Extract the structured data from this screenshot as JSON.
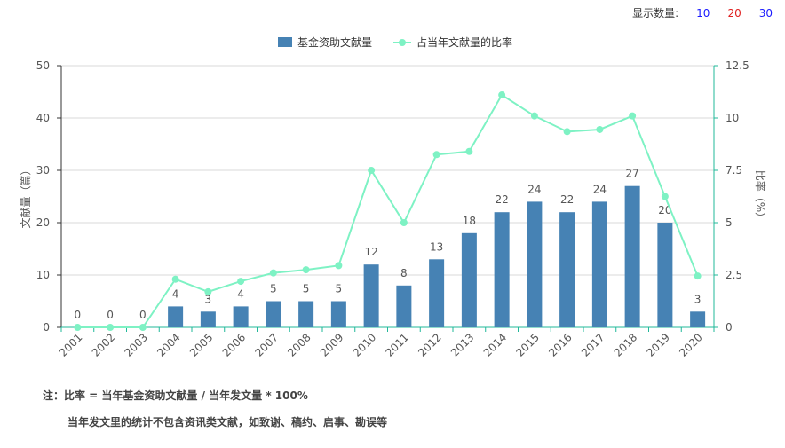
{
  "count_selector": {
    "label": "显示数量:",
    "options": [
      {
        "value": "10",
        "color": "#1a1aff"
      },
      {
        "value": "20",
        "color": "#e02020"
      },
      {
        "value": "30",
        "color": "#1a1aff"
      }
    ]
  },
  "colors": {
    "bar": "#4682b4",
    "line": "#7ef2c4",
    "axis_right": "#21b89a",
    "grid": "#d9d9d9",
    "text": "#555555"
  },
  "chart_data": {
    "type": "bar",
    "categories": [
      "2001",
      "2002",
      "2003",
      "2004",
      "2005",
      "2006",
      "2007",
      "2008",
      "2009",
      "2010",
      "2011",
      "2012",
      "2013",
      "2014",
      "2015",
      "2016",
      "2017",
      "2018",
      "2019",
      "2020"
    ],
    "series": [
      {
        "name": "基金资助文献量",
        "type": "bar",
        "axis": "left",
        "values": [
          0,
          0,
          0,
          4,
          3,
          4,
          5,
          5,
          5,
          12,
          8,
          13,
          18,
          22,
          24,
          22,
          24,
          27,
          20,
          3
        ]
      },
      {
        "name": "占当年文献量的比率",
        "type": "line",
        "axis": "right",
        "values": [
          0,
          0,
          0,
          2.3,
          1.7,
          2.2,
          2.6,
          2.75,
          2.95,
          7.5,
          5.0,
          8.25,
          8.4,
          11.1,
          10.1,
          9.35,
          9.45,
          10.1,
          6.25,
          2.45
        ]
      }
    ],
    "ylabel": "文献量（篇）",
    "ylabel_right": "比率（%）",
    "ylim": [
      0,
      50
    ],
    "ylim_right": [
      0,
      12.5
    ],
    "yticks": [
      "0",
      "10",
      "20",
      "30",
      "40",
      "50"
    ],
    "yticks_right": [
      "0",
      "2.5",
      "5",
      "7.5",
      "10",
      "12.5"
    ],
    "grid": true,
    "legend_position": "top-center"
  },
  "notes": {
    "line1": "注：比率 = 当年基金资助文献量 / 当年发文量 * 100%",
    "line2": "当年发文里的统计不包含资讯类文献，如致谢、稿约、启事、勘误等"
  }
}
